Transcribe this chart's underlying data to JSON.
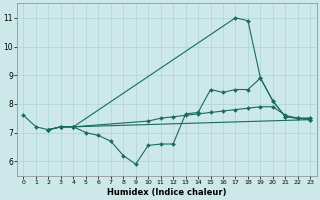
{
  "xlabel": "Humidex (Indice chaleur)",
  "bg_color": "#cce8e8",
  "grid_color": "#aad4d4",
  "line_color": "#1a6b5a",
  "xlim": [
    -0.5,
    23.5
  ],
  "ylim": [
    5.5,
    11.5
  ],
  "xticks": [
    0,
    1,
    2,
    3,
    4,
    5,
    6,
    7,
    8,
    9,
    10,
    11,
    12,
    13,
    14,
    15,
    16,
    17,
    18,
    19,
    20,
    21,
    22,
    23
  ],
  "yticks": [
    6,
    7,
    8,
    9,
    10,
    11
  ],
  "lines": [
    {
      "x": [
        0,
        1,
        2,
        3,
        4,
        5,
        6,
        7,
        8,
        9,
        10,
        11,
        12,
        13,
        14,
        15,
        16,
        17,
        18,
        19,
        20,
        21,
        22,
        23
      ],
      "y": [
        7.6,
        7.2,
        7.1,
        7.2,
        7.2,
        7.0,
        6.9,
        6.7,
        6.2,
        5.9,
        6.55,
        6.6,
        6.6,
        7.65,
        7.7,
        8.5,
        8.4,
        8.5,
        8.5,
        8.9,
        8.1,
        7.55,
        7.5,
        7.5
      ]
    },
    {
      "x": [
        2,
        3,
        4,
        17,
        18,
        19,
        20,
        21,
        22,
        23
      ],
      "y": [
        7.1,
        7.2,
        7.2,
        11.0,
        10.9,
        8.9,
        8.1,
        7.55,
        7.5,
        7.5
      ]
    },
    {
      "x": [
        2,
        3,
        4,
        23
      ],
      "y": [
        7.1,
        7.2,
        7.2,
        7.45
      ]
    },
    {
      "x": [
        2,
        3,
        4,
        10,
        11,
        12,
        13,
        14,
        15,
        16,
        17,
        18,
        19,
        20,
        21,
        22,
        23
      ],
      "y": [
        7.1,
        7.2,
        7.2,
        7.4,
        7.5,
        7.55,
        7.6,
        7.65,
        7.7,
        7.75,
        7.8,
        7.85,
        7.9,
        7.9,
        7.6,
        7.5,
        7.45
      ]
    }
  ]
}
